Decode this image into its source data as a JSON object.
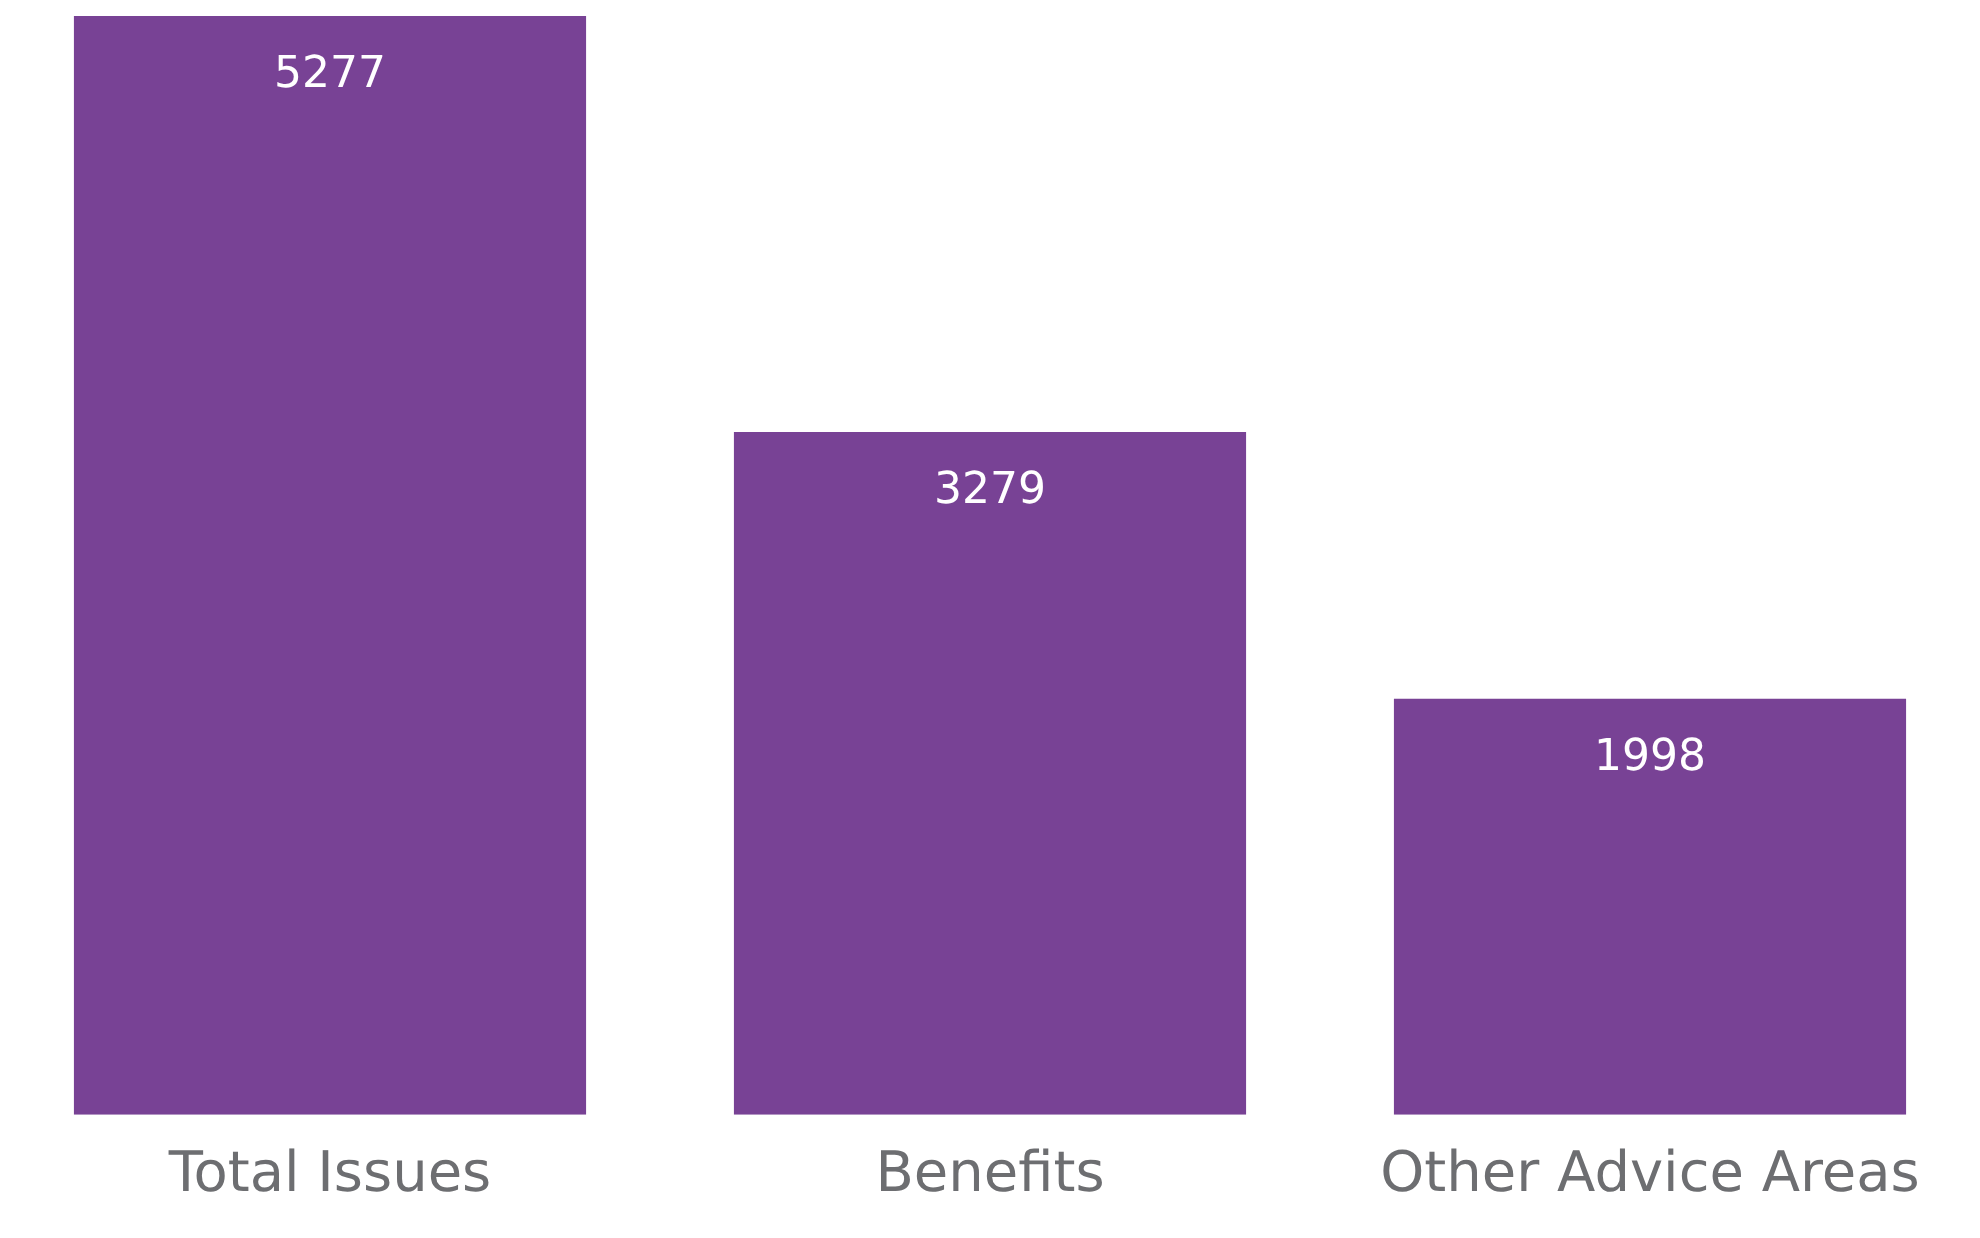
{
  "chart_data": {
    "type": "bar",
    "categories": [
      "Total Issues",
      "Benefits",
      "Other Advice Areas"
    ],
    "values": [
      5277,
      3279,
      1998
    ],
    "color": "#784295",
    "data_labels": true,
    "grid": false,
    "legend": false
  }
}
